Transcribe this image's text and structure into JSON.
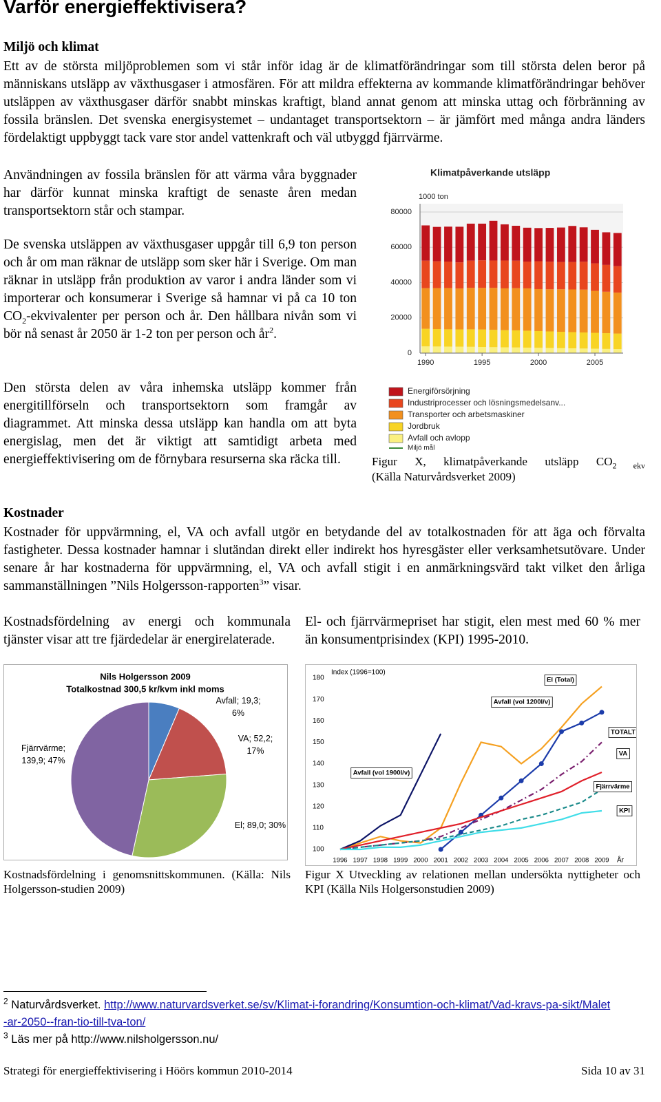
{
  "title": "Varför energieffektivisera?",
  "section1": {
    "heading": "Miljö och klimat",
    "p1": "Ett av de största miljöproblemen som vi står inför idag är de klimatförändringar som till största delen beror på människans utsläpp av växthusgaser i atmosfären. För att mildra effekterna av kommande klimatförändringar behöver utsläppen av växthusgaser därför snabbt minskas kraftigt, bland annat genom att minska uttag och förbränning av fossila bränslen. Det svenska energisystemet – undantaget transportsektorn – är jämfört med många andra länders fördelaktigt uppbyggt tack vare stor andel vattenkraft och väl utbyggd fjärrvärme.",
    "p2": "Användningen av fossila bränslen för att värma våra byggnader har därför kunnat minska kraftigt de senaste åren medan transportsektorn står och stampar.",
    "p3": [
      "De svenska utsläppen av växthusgaser uppgår till 6,9 ton person och år om man räknar de utsläpp som sker här i Sverige. Om man räknar in utsläpp från produktion av varor i andra länder som vi importerar och konsumerar i Sverige så hamnar vi på ca 10 ton CO",
      "2",
      "-ekvivalenter per person och år. Den hållbara nivån som vi bör nå senast år 2050 är 1-2 ton per person och år",
      "2",
      "."
    ],
    "p4": "Den största delen av våra inhemska utsläpp kommer från energitillförseln och transportsektorn som framgår av diagrammet. Att minska dessa utsläpp kan handla om att byta energislag, men det är viktigt att samtidigt arbeta med energieffektivisering om de förnybara resurserna ska räcka till."
  },
  "figure1_caption": [
    "Figur X, klimatpåverkande utsläpp CO",
    "2 ekv",
    "(Källa Naturvårdsverket 2009)"
  ],
  "section2": {
    "heading": "Kostnader",
    "p1": [
      "Kostnader för uppvärmning, el, VA och avfall utgör en betydande del av totalkostnaden för att äga och förvalta fastigheter. Dessa kostnader hamnar i slutändan direkt eller indirekt hos hyresgäster eller verksamhetsutövare. Under senare år har kostnaderna för uppvärmning, el, VA och avfall stigit i en anmärkningsvärd takt vilket den årliga sammanställningen ”Nils Holgersson-rapporten",
      "3",
      "” visar."
    ],
    "left_text": "Kostnadsfördelning av energi och kommunala tjänster visar att tre fjärdedelar är energirelaterade.",
    "right_text": "El- och fjärrvärmepriset har stigit, elen mest med 60 % mer än konsumentprisindex (KPI) 1995-2010."
  },
  "pie_caption": "Kostnadsfördelning i genomsnittskommunen. (Källa: Nils Holgersson-studien 2009)",
  "line_caption": "Figur X Utveckling av relationen mellan undersökta nyttigheter och KPI (Källa Nils Holgersonstudien 2009)",
  "footnotes": [
    {
      "mark": "2",
      "text": "Naturvårdsverket.",
      "link": "http://www.naturvardsverket.se/sv/Klimat-i-forandring/Konsumtion-och-klimat/Vad-kravs-pa-sikt/Malet-ar-2050--fran-tio-till-tva-ton/"
    },
    {
      "mark": "3",
      "text": "Läs mer på http://www.nilsholgersson.nu/"
    }
  ],
  "footer": {
    "left": "Strategi för energieffektivisering i Höörs kommun 2010-2014",
    "right": "Sida 10 av 31"
  },
  "chart_data": [
    {
      "type": "bar",
      "stacked": true,
      "title": "Klimatpåverkande utsläpp",
      "ylabel": "1000 ton",
      "x": [
        1990,
        1991,
        1992,
        1993,
        1994,
        1995,
        1996,
        1997,
        1998,
        1999,
        2000,
        2001,
        2002,
        2003,
        2004,
        2005,
        2006,
        2007
      ],
      "xlim": [
        1989.5,
        2007.5
      ],
      "xticks": [
        1990,
        1995,
        2000,
        2005
      ],
      "ylim": [
        0,
        80000
      ],
      "yticks": [
        0,
        20000,
        40000,
        60000,
        80000
      ],
      "grid": true,
      "series": [
        {
          "name": "Energiförsörjning",
          "color": "#c0141c",
          "values": [
            20000,
            19500,
            19800,
            20200,
            21000,
            20800,
            22500,
            20500,
            19800,
            19200,
            18800,
            19200,
            19600,
            20500,
            19500,
            19000,
            18500,
            18800
          ]
        },
        {
          "name": "Industriprocesser och lösningsmedelsanv...",
          "color": "#e8461e",
          "values": [
            15600,
            15200,
            15000,
            14800,
            15400,
            15600,
            15500,
            15800,
            15600,
            15200,
            15800,
            15600,
            15400,
            15500,
            15800,
            15600,
            15200,
            15000
          ]
        },
        {
          "name": "Transporter och arbetsmaskiner",
          "color": "#f2901e",
          "values": [
            23000,
            23200,
            23400,
            23200,
            23500,
            23600,
            23800,
            23700,
            23900,
            24000,
            23800,
            23900,
            24100,
            24200,
            24300,
            23800,
            23500,
            23200
          ]
        },
        {
          "name": "Jordbruk",
          "color": "#f8d424",
          "values": [
            10000,
            9900,
            9800,
            9800,
            9900,
            9900,
            9800,
            9700,
            9700,
            9600,
            9500,
            9400,
            9300,
            9200,
            9100,
            9000,
            8900,
            8800
          ]
        },
        {
          "name": "Avfall och avlopp",
          "color": "#faf080",
          "values": [
            3800,
            3750,
            3700,
            3650,
            3600,
            3500,
            3400,
            3300,
            3200,
            3100,
            3000,
            2900,
            2800,
            2700,
            2600,
            2500,
            2400,
            2300
          ]
        }
      ],
      "target_label": "Miljö mål"
    },
    {
      "type": "pie",
      "title": "Nils Holgersson 2009",
      "subtitle": "Totalkostnad 300,5 kr/kvm inkl moms",
      "values": [
        19.3,
        52.2,
        89.0,
        139.9
      ],
      "value_labels": [
        "Avfall; 19,3; 6%",
        "VA; 52,2; 17%",
        "El; 89,0; 30%",
        "Fjärrvärme; 139,9; 47%"
      ],
      "colors": [
        "#4a7ec0",
        "#c0504d",
        "#9bbb59",
        "#8064a2"
      ]
    },
    {
      "type": "line",
      "ylabel": "Index (1996=100)",
      "xlabel": "År",
      "x": [
        1996,
        1997,
        1998,
        1999,
        2000,
        2001,
        2002,
        2003,
        2004,
        2005,
        2006,
        2007,
        2008,
        2009
      ],
      "xlim": [
        1996,
        2009
      ],
      "xticks": [
        1996,
        1997,
        1998,
        1999,
        2000,
        2001,
        2002,
        2003,
        2004,
        2005,
        2006,
        2007,
        2008,
        2009
      ],
      "ylim": [
        100,
        180
      ],
      "yticks": [
        100,
        110,
        120,
        130,
        140,
        150,
        160,
        170,
        180
      ],
      "series": [
        {
          "name": "El (Total)",
          "color": "#f5a020",
          "values": [
            100,
            103,
            106,
            104,
            103,
            110,
            131,
            150,
            148,
            140,
            147,
            157,
            168,
            176
          ]
        },
        {
          "name": "Avfall (vol 1200l/v)",
          "color": "#1c3caa",
          "markers": true,
          "values": [
            null,
            null,
            null,
            null,
            null,
            100,
            108,
            116,
            124,
            132,
            140,
            155,
            159,
            164
          ]
        },
        {
          "name": "Avfall (vol 1900l/v)",
          "color": "#0c1466",
          "values": [
            100,
            104,
            111,
            116,
            135,
            154,
            null,
            null,
            null,
            null,
            null,
            null,
            null,
            null
          ]
        },
        {
          "name": "TOTALT",
          "color": "#7a1f6e",
          "dash": "dashdot",
          "values": [
            100,
            101,
            102,
            103,
            104,
            106,
            110,
            114,
            118,
            123,
            128,
            135,
            141,
            150
          ]
        },
        {
          "name": "VA",
          "color": "#e0202a",
          "values": [
            100,
            102,
            104,
            106,
            108,
            110,
            112,
            115,
            118,
            121,
            124,
            127,
            132,
            136
          ]
        },
        {
          "name": "Fjärrvärme",
          "color": "#1a8a8a",
          "dash": "dash",
          "values": [
            100,
            101,
            102,
            103,
            104,
            105,
            107,
            109,
            111,
            114,
            116,
            119,
            122,
            128
          ]
        },
        {
          "name": "KPI",
          "color": "#40dde8",
          "values": [
            100,
            100,
            101,
            101,
            102,
            104,
            106,
            108,
            109,
            110,
            112,
            114,
            117,
            118
          ]
        }
      ]
    }
  ]
}
